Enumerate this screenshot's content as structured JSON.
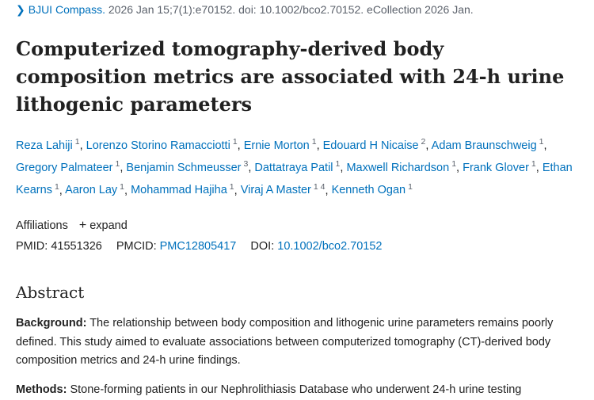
{
  "citation": {
    "journal": "BJUI Compass.",
    "details": "2026 Jan 15;7(1):e70152. doi: 10.1002/bco2.70152. eCollection 2026 Jan."
  },
  "title": "Computerized tomography-derived body composition metrics are associated with 24-h urine lithogenic parameters",
  "authors": [
    {
      "name": "Reza Lahiji",
      "aff": "1"
    },
    {
      "name": "Lorenzo Storino Ramacciotti",
      "aff": "1"
    },
    {
      "name": "Ernie Morton",
      "aff": "1"
    },
    {
      "name": "Edouard H Nicaise",
      "aff": "2"
    },
    {
      "name": "Adam Braunschweig",
      "aff": "1"
    },
    {
      "name": "Gregory Palmateer",
      "aff": "1"
    },
    {
      "name": "Benjamin Schmeusser",
      "aff": "3"
    },
    {
      "name": "Dattatraya Patil",
      "aff": "1"
    },
    {
      "name": "Maxwell Richardson",
      "aff": "1"
    },
    {
      "name": "Frank Glover",
      "aff": "1"
    },
    {
      "name": "Ethan Kearns",
      "aff": "1"
    },
    {
      "name": "Aaron Lay",
      "aff": "1"
    },
    {
      "name": "Mohammad Hajiha",
      "aff": "1"
    },
    {
      "name": "Viraj A Master",
      "aff": "1 4"
    },
    {
      "name": "Kenneth Ogan",
      "aff": "1"
    }
  ],
  "affiliations": {
    "label": "Affiliations",
    "expand_label": "expand"
  },
  "ids": {
    "pmid_label": "PMID:",
    "pmid": "41551326",
    "pmcid_label": "PMCID:",
    "pmcid": "PMC12805417",
    "doi_label": "DOI:",
    "doi": "10.1002/bco2.70152"
  },
  "abstract": {
    "heading": "Abstract",
    "background_label": "Background:",
    "background_text": "The relationship between body composition and lithogenic urine parameters remains poorly defined. This study aimed to evaluate associations between computerized tomography (CT)-derived body composition metrics and 24-h urine findings.",
    "methods_label": "Methods:",
    "methods_text": "Stone-forming patients in our Nephrolithiasis Database who underwent 24-h urine testing"
  }
}
